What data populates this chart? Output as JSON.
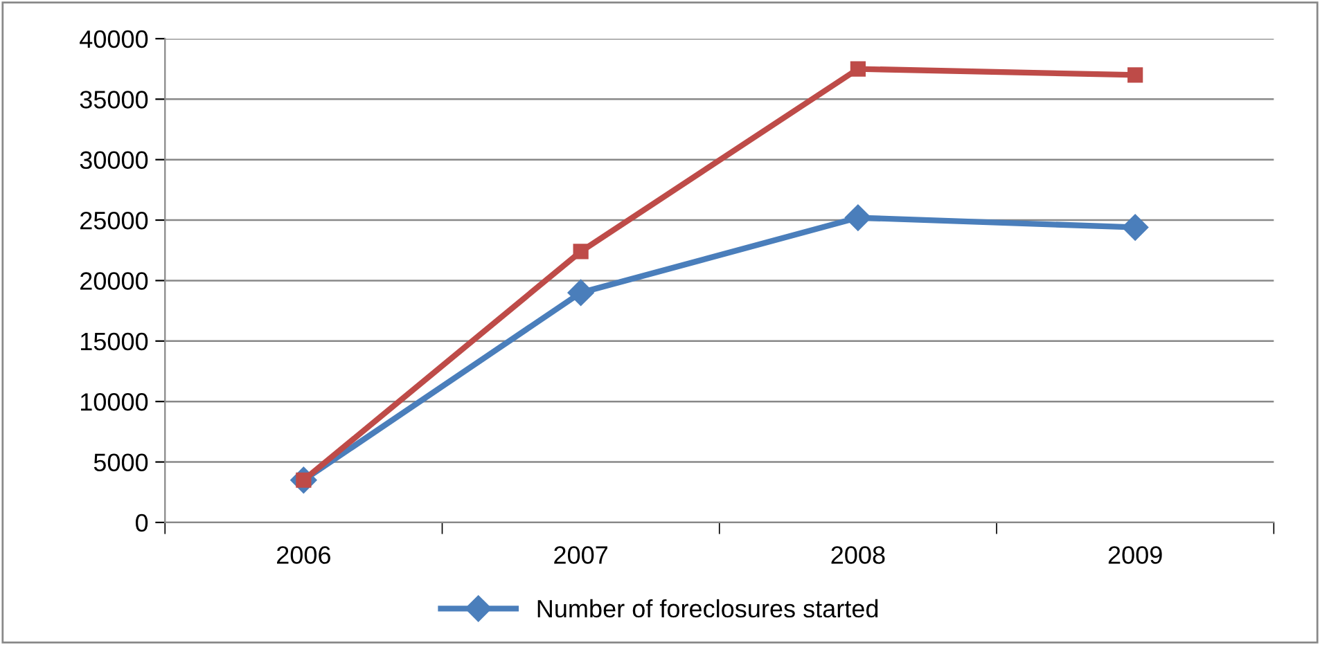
{
  "chart_data": {
    "type": "line",
    "categories": [
      "2006",
      "2007",
      "2008",
      "2009"
    ],
    "series": [
      {
        "name": "Number of foreclosures started",
        "color": "#4a7ebb",
        "values": [
          3500,
          19000,
          25200,
          24400
        ],
        "marker": "diamond"
      },
      {
        "color": "#be4b48",
        "values": [
          3500,
          22400,
          37500,
          37000
        ],
        "marker": "square"
      }
    ],
    "ylim": [
      0,
      40000
    ],
    "yticks": [
      0,
      5000,
      10000,
      15000,
      20000,
      25000,
      30000,
      35000,
      40000
    ],
    "grid": "y",
    "legend": "bottom",
    "line_style": "solid"
  }
}
